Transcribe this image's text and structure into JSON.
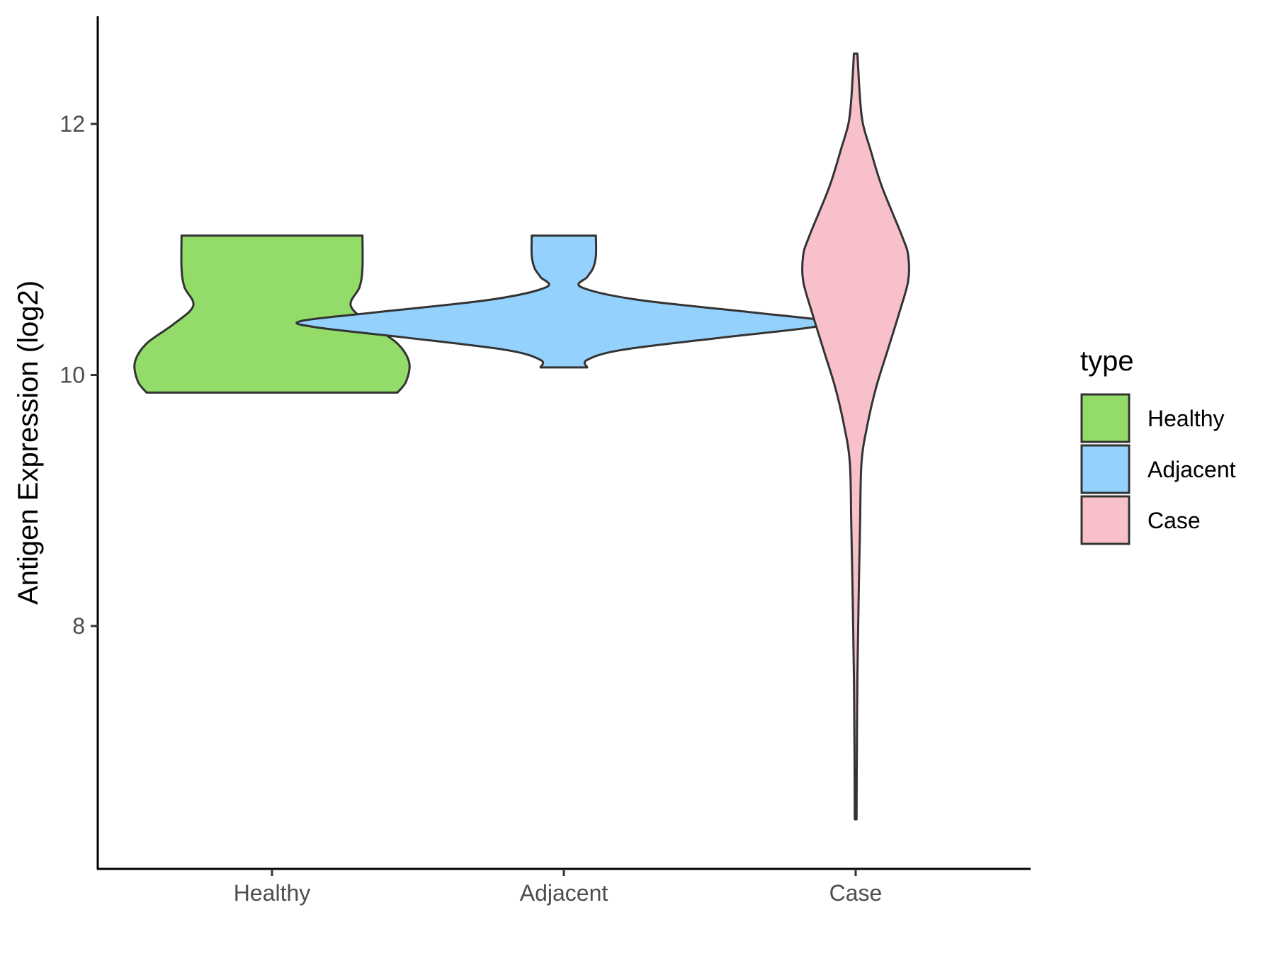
{
  "chart_data": {
    "type": "violin",
    "title": "",
    "xlabel": "",
    "ylabel": "Antigen Expression (log2)",
    "ylim": [
      6.2,
      12.9
    ],
    "yticks": [
      8,
      10,
      12
    ],
    "categories": [
      "Healthy",
      "Adjacent",
      "Case"
    ],
    "legend": {
      "title": "type",
      "placement": "right",
      "items": [
        {
          "label": "Healthy",
          "color": "#93dc69"
        },
        {
          "label": "Adjacent",
          "color": "#94d2fd"
        },
        {
          "label": "Case",
          "color": "#f8c0cb"
        }
      ]
    },
    "series": [
      {
        "category": "Healthy",
        "color": "#93dc69",
        "y_min": 9.86,
        "y_max": 11.11,
        "profile": [
          [
            9.86,
            0.43
          ],
          [
            9.95,
            0.46
          ],
          [
            10.1,
            0.47
          ],
          [
            10.25,
            0.43
          ],
          [
            10.4,
            0.34
          ],
          [
            10.55,
            0.27
          ],
          [
            10.7,
            0.3
          ],
          [
            10.85,
            0.31
          ],
          [
            11.11,
            0.31
          ]
        ]
      },
      {
        "category": "Adjacent",
        "color": "#94d2fd",
        "y_min": 10.06,
        "y_max": 11.11,
        "profile": [
          [
            10.06,
            0.08
          ],
          [
            10.12,
            0.08
          ],
          [
            10.2,
            0.2
          ],
          [
            10.3,
            0.55
          ],
          [
            10.38,
            0.85
          ],
          [
            10.43,
            0.9
          ],
          [
            10.5,
            0.64
          ],
          [
            10.6,
            0.25
          ],
          [
            10.7,
            0.06
          ],
          [
            10.78,
            0.08
          ],
          [
            10.85,
            0.1
          ],
          [
            10.95,
            0.11
          ],
          [
            11.11,
            0.11
          ]
        ]
      },
      {
        "category": "Case",
        "color": "#f8c0cb",
        "y_min": 6.46,
        "y_max": 12.56,
        "profile": [
          [
            6.46,
            0.003
          ],
          [
            7.0,
            0.004
          ],
          [
            7.6,
            0.006
          ],
          [
            8.2,
            0.01
          ],
          [
            8.8,
            0.015
          ],
          [
            9.3,
            0.02
          ],
          [
            9.6,
            0.04
          ],
          [
            9.9,
            0.07
          ],
          [
            10.2,
            0.11
          ],
          [
            10.5,
            0.15
          ],
          [
            10.75,
            0.18
          ],
          [
            10.95,
            0.18
          ],
          [
            11.1,
            0.16
          ],
          [
            11.5,
            0.09
          ],
          [
            11.8,
            0.05
          ],
          [
            12.0,
            0.025
          ],
          [
            12.2,
            0.015
          ],
          [
            12.56,
            0.006
          ]
        ]
      }
    ]
  }
}
